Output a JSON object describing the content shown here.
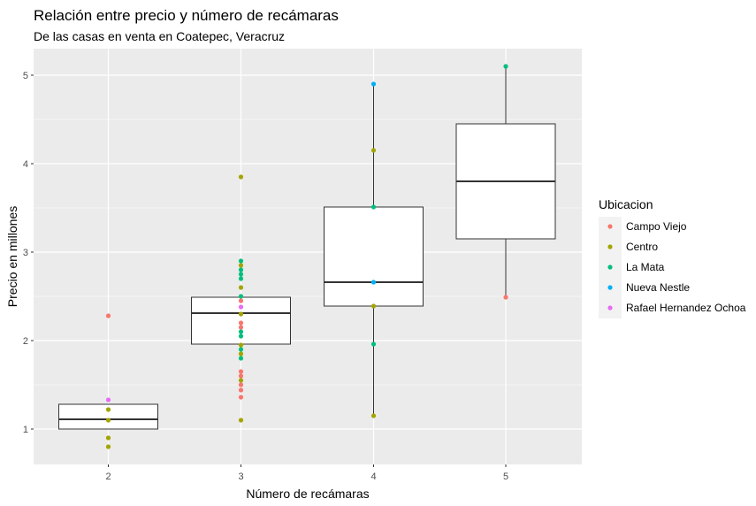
{
  "chart_data": {
    "type": "boxplot",
    "title": "Relación entre precio y número de recámaras",
    "subtitle": "De las casas en venta en Coatepec, Veracruz",
    "xlabel": "Número de recámaras",
    "ylabel": "Precio en millones",
    "categories": [
      "2",
      "3",
      "4",
      "5"
    ],
    "yticks": [
      "1",
      "2",
      "3",
      "4",
      "5"
    ],
    "ylim": [
      0.6,
      5.3
    ],
    "grid": true,
    "legend": {
      "title": "Ubicacion",
      "position": "right",
      "entries": [
        {
          "name": "Campo Viejo",
          "color": "#F8766D"
        },
        {
          "name": "Centro",
          "color": "#A3A500"
        },
        {
          "name": "La Mata",
          "color": "#00BF7D"
        },
        {
          "name": "Nueva Nestle",
          "color": "#00B0F6"
        },
        {
          "name": "Rafael Hernandez Ochoa",
          "color": "#E76BF3"
        }
      ]
    },
    "boxes": [
      {
        "category": "2",
        "lower_whisker": 1.0,
        "q1": 1.0,
        "median": 1.11,
        "q3": 1.28,
        "upper_whisker": 1.28
      },
      {
        "category": "3",
        "lower_whisker": 1.96,
        "q1": 1.96,
        "median": 2.31,
        "q3": 2.49,
        "upper_whisker": 2.49
      },
      {
        "category": "4",
        "lower_whisker": 1.15,
        "q1": 2.39,
        "median": 2.66,
        "q3": 3.51,
        "upper_whisker": 4.9
      },
      {
        "category": "5",
        "lower_whisker": 2.49,
        "q1": 3.15,
        "median": 3.8,
        "q3": 4.45,
        "upper_whisker": 5.1
      }
    ],
    "points": [
      {
        "category": "2",
        "y": 2.28,
        "group": "Campo Viejo"
      },
      {
        "category": "2",
        "y": 1.33,
        "group": "Rafael Hernandez Ochoa"
      },
      {
        "category": "2",
        "y": 1.22,
        "group": "Centro"
      },
      {
        "category": "2",
        "y": 1.1,
        "group": "Centro"
      },
      {
        "category": "2",
        "y": 0.9,
        "group": "Centro"
      },
      {
        "category": "2",
        "y": 0.8,
        "group": "Centro"
      },
      {
        "category": "3",
        "y": 3.85,
        "group": "Centro"
      },
      {
        "category": "3",
        "y": 2.9,
        "group": "La Mata"
      },
      {
        "category": "3",
        "y": 2.85,
        "group": "Centro"
      },
      {
        "category": "3",
        "y": 2.8,
        "group": "La Mata"
      },
      {
        "category": "3",
        "y": 2.75,
        "group": "La Mata"
      },
      {
        "category": "3",
        "y": 2.7,
        "group": "La Mata"
      },
      {
        "category": "3",
        "y": 2.6,
        "group": "Centro"
      },
      {
        "category": "3",
        "y": 2.5,
        "group": "La Mata"
      },
      {
        "category": "3",
        "y": 2.45,
        "group": "Campo Viejo"
      },
      {
        "category": "3",
        "y": 2.38,
        "group": "Rafael Hernandez Ochoa"
      },
      {
        "category": "3",
        "y": 2.3,
        "group": "Centro"
      },
      {
        "category": "3",
        "y": 2.2,
        "group": "Campo Viejo"
      },
      {
        "category": "3",
        "y": 2.15,
        "group": "Campo Viejo"
      },
      {
        "category": "3",
        "y": 2.1,
        "group": "La Mata"
      },
      {
        "category": "3",
        "y": 2.05,
        "group": "La Mata"
      },
      {
        "category": "3",
        "y": 1.95,
        "group": "Centro"
      },
      {
        "category": "3",
        "y": 1.9,
        "group": "La Mata"
      },
      {
        "category": "3",
        "y": 1.85,
        "group": "Centro"
      },
      {
        "category": "3",
        "y": 1.8,
        "group": "La Mata"
      },
      {
        "category": "3",
        "y": 1.65,
        "group": "Campo Viejo"
      },
      {
        "category": "3",
        "y": 1.6,
        "group": "Campo Viejo"
      },
      {
        "category": "3",
        "y": 1.55,
        "group": "Centro"
      },
      {
        "category": "3",
        "y": 1.5,
        "group": "Campo Viejo"
      },
      {
        "category": "3",
        "y": 1.44,
        "group": "Campo Viejo"
      },
      {
        "category": "3",
        "y": 1.36,
        "group": "Campo Viejo"
      },
      {
        "category": "3",
        "y": 1.1,
        "group": "Centro"
      },
      {
        "category": "4",
        "y": 4.9,
        "group": "Nueva Nestle"
      },
      {
        "category": "4",
        "y": 4.15,
        "group": "Centro"
      },
      {
        "category": "4",
        "y": 3.51,
        "group": "La Mata"
      },
      {
        "category": "4",
        "y": 2.66,
        "group": "Nueva Nestle"
      },
      {
        "category": "4",
        "y": 2.39,
        "group": "Centro"
      },
      {
        "category": "4",
        "y": 1.96,
        "group": "La Mata"
      },
      {
        "category": "4",
        "y": 1.15,
        "group": "Centro"
      },
      {
        "category": "5",
        "y": 5.1,
        "group": "La Mata"
      },
      {
        "category": "5",
        "y": 2.49,
        "group": "Campo Viejo"
      }
    ]
  }
}
